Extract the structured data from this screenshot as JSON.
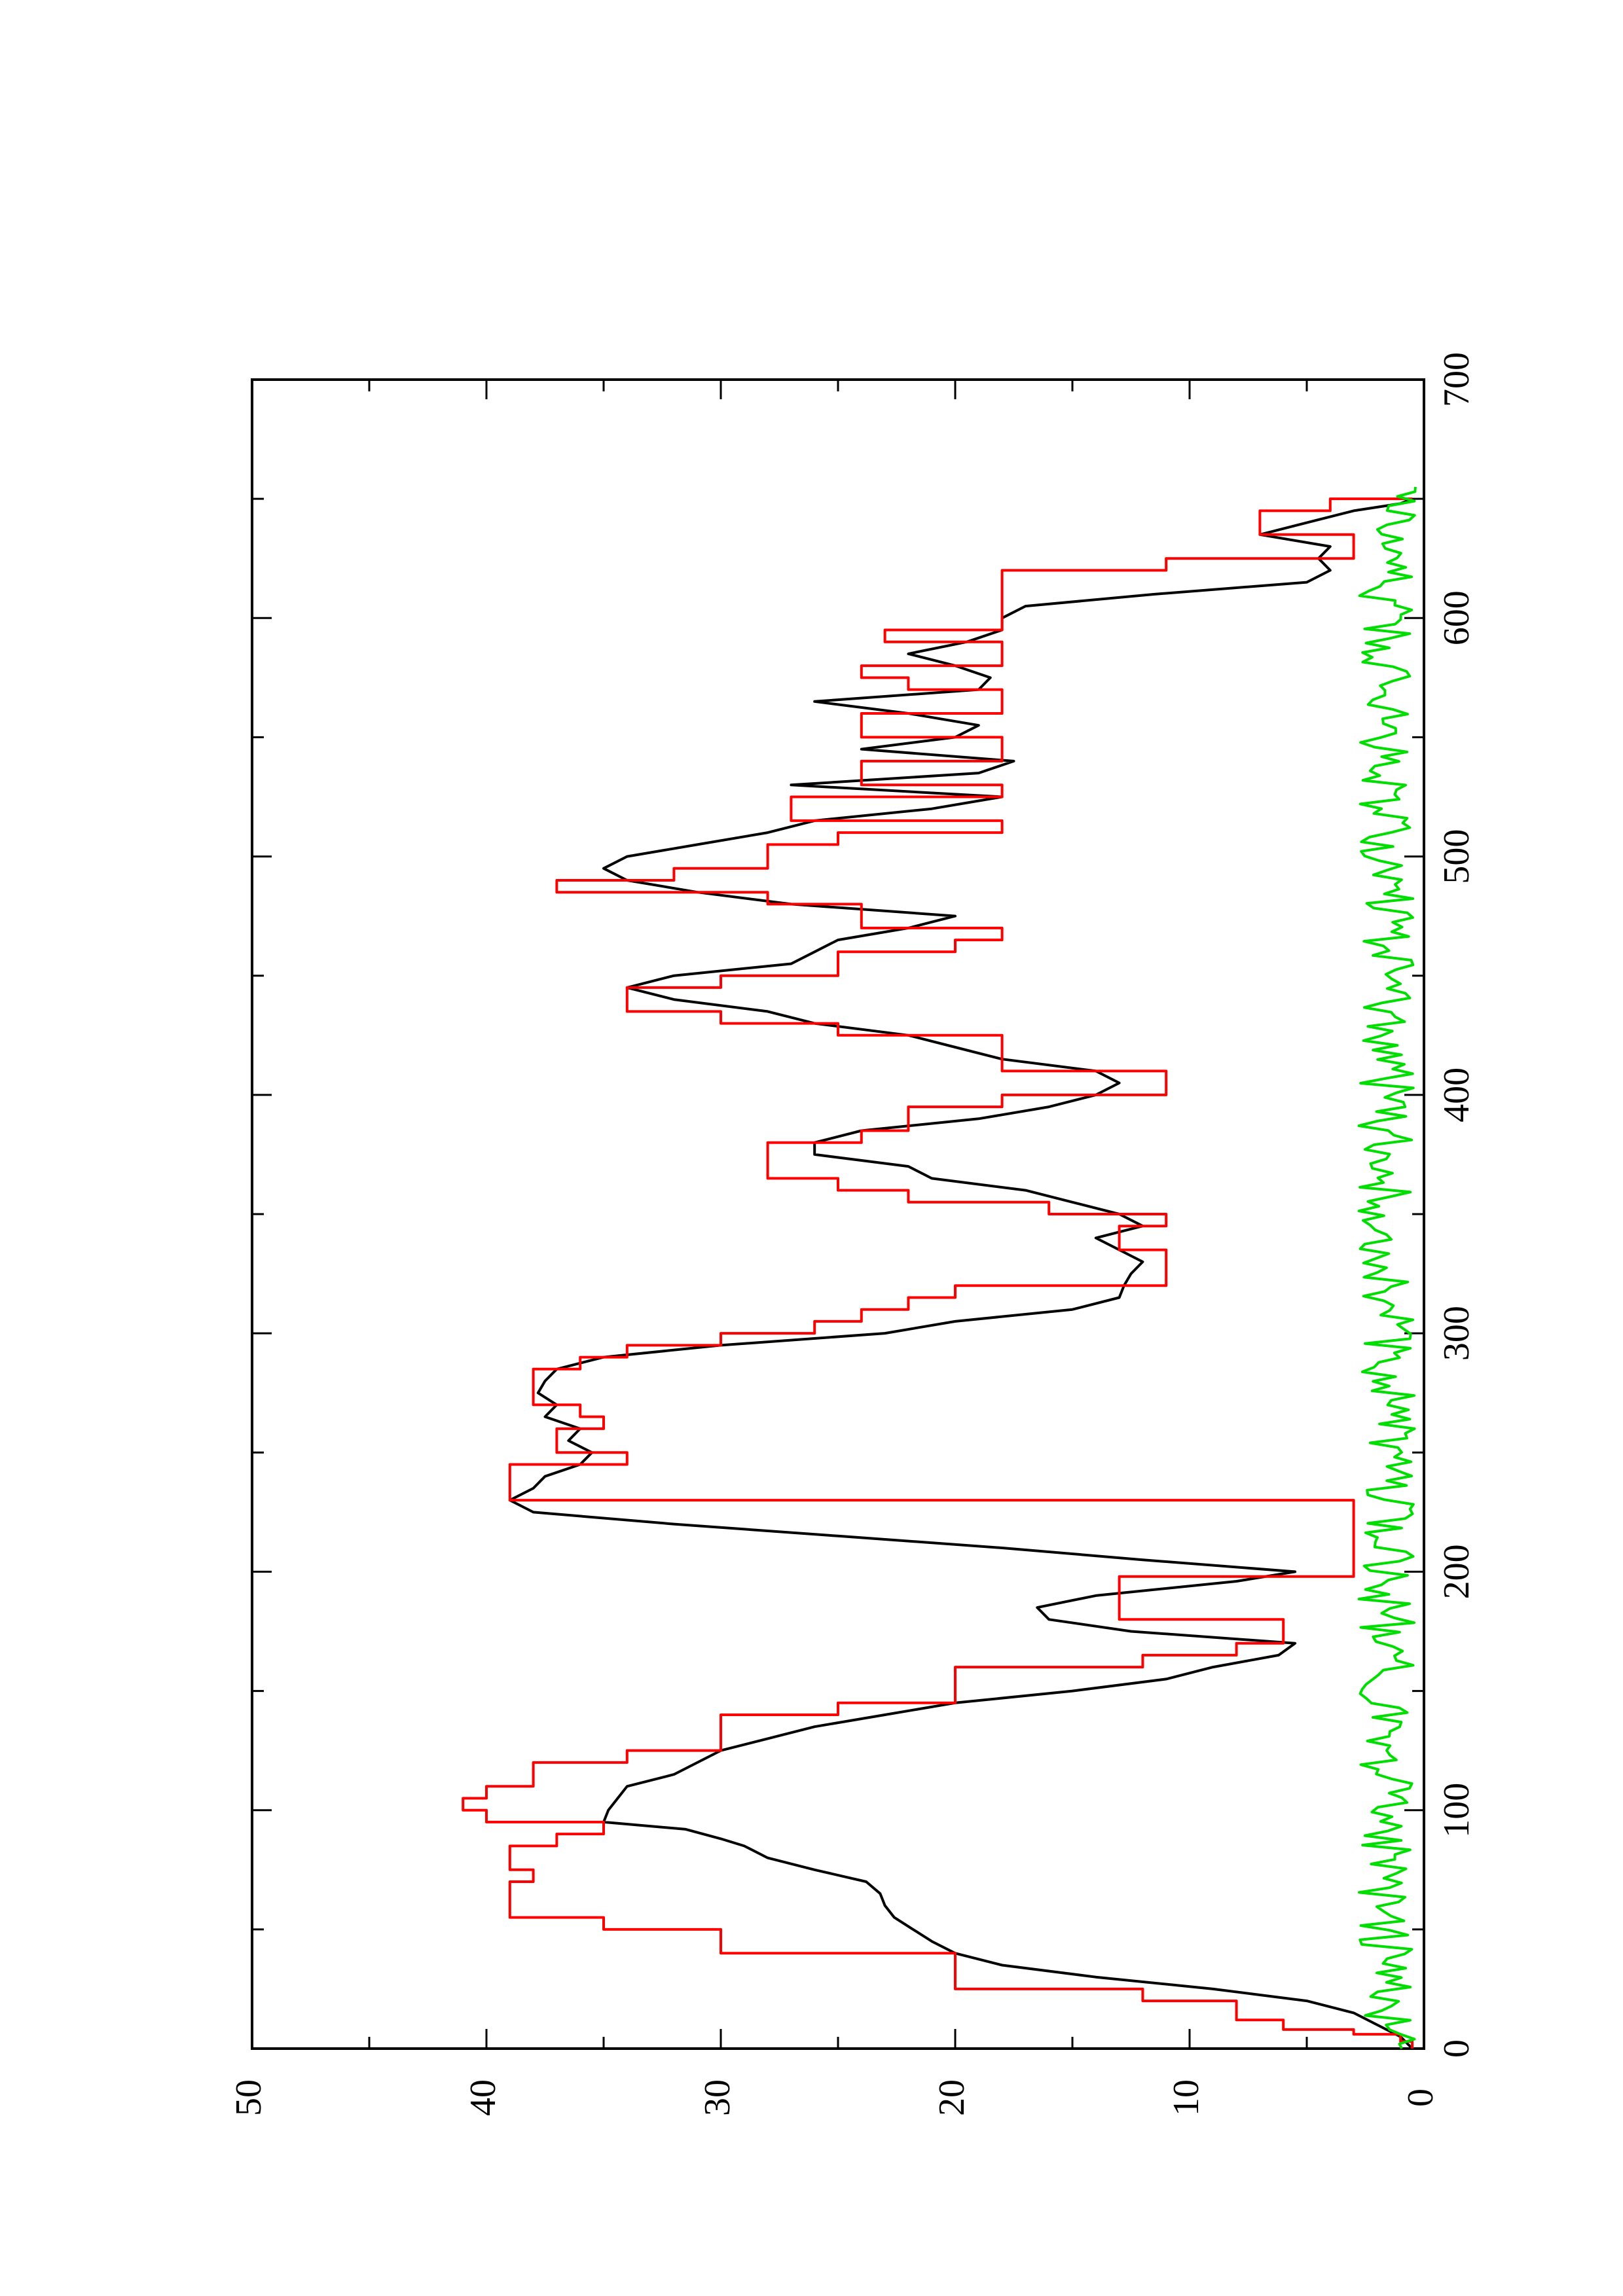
{
  "chart_data": {
    "type": "line",
    "orientation": "rotated-90-ccw",
    "title": "",
    "xlabel": "",
    "ylabel": "",
    "xlim": [
      0,
      700
    ],
    "ylim": [
      0,
      50
    ],
    "x_ticks": [
      0,
      100,
      200,
      300,
      400,
      500,
      600,
      700
    ],
    "y_ticks": [
      0,
      10,
      20,
      30,
      40,
      50
    ],
    "x_tick_labels": [
      "0",
      "100",
      "200",
      "300",
      "400",
      "500",
      "600",
      "700"
    ],
    "y_tick_labels": [
      "0",
      "10",
      "20",
      "30",
      "40",
      "50"
    ],
    "grid": false,
    "series": [
      {
        "color": "#000000",
        "step": false,
        "x": [
          0,
          5,
          10,
          15,
          20,
          25,
          30,
          35,
          40,
          45,
          50,
          55,
          60,
          65,
          70,
          75,
          80,
          85,
          88,
          92,
          95,
          100,
          105,
          110,
          115,
          120,
          125,
          130,
          135,
          140,
          145,
          150,
          155,
          160,
          165,
          170,
          175,
          180,
          185,
          190,
          196,
          200,
          205,
          210,
          215,
          220,
          225,
          230,
          235,
          240,
          245,
          250,
          255,
          260,
          265,
          270,
          275,
          280,
          285,
          290,
          295,
          300,
          305,
          310,
          315,
          320,
          325,
          330,
          335,
          340,
          345,
          350,
          355,
          360,
          365,
          370,
          375,
          380,
          385,
          390,
          395,
          400,
          405,
          410,
          415,
          420,
          425,
          430,
          435,
          440,
          445,
          450,
          455,
          460,
          465,
          470,
          475,
          480,
          485,
          490,
          495,
          500,
          505,
          510,
          515,
          520,
          525,
          530,
          535,
          540,
          545,
          550,
          555,
          560,
          565,
          570,
          575,
          580,
          585,
          590,
          595,
          600,
          605,
          610,
          615,
          620,
          625,
          630,
          635,
          640,
          645,
          648,
          650
        ],
        "y": [
          0.5,
          1,
          2,
          3,
          5,
          9,
          14,
          18,
          20,
          21,
          21.8,
          22.6,
          23,
          23.2,
          23.8,
          26,
          28,
          29,
          30,
          31.5,
          35,
          34.8,
          34.4,
          34,
          32,
          31,
          30,
          28,
          26,
          23,
          20,
          15,
          11,
          9,
          6.2,
          5.5,
          12.5,
          16,
          16.5,
          14,
          8,
          5.5,
          12,
          18,
          25,
          32,
          38,
          39,
          38,
          37.5,
          36,
          35.5,
          36.5,
          36,
          37.5,
          37,
          37.8,
          37.5,
          37,
          35,
          30,
          23,
          20,
          15,
          13,
          12.8,
          12.5,
          12,
          13,
          14,
          12,
          13,
          15,
          17,
          21,
          22,
          26,
          26,
          24,
          19,
          16,
          14,
          13,
          14,
          18,
          20,
          22,
          26,
          28,
          32,
          34,
          32,
          27,
          26,
          25,
          22,
          20,
          27,
          31,
          34,
          35,
          34,
          31,
          28,
          26,
          21,
          18,
          27,
          19,
          17.5,
          24,
          20,
          19,
          22,
          26,
          19,
          18.5,
          20,
          22,
          19.5,
          18,
          18,
          17,
          11.5,
          5,
          4,
          4.5,
          4,
          7,
          5,
          3,
          1,
          0.5
        ],
        "y_scale_note": "values in data units"
      },
      {
        "color": "#ff0000",
        "step": true,
        "x": [
          0,
          3,
          6,
          8,
          12,
          20,
          25,
          40,
          50,
          55,
          65,
          70,
          75,
          85,
          90,
          95,
          100,
          105,
          110,
          120,
          125,
          140,
          145,
          160,
          165,
          170,
          180,
          185,
          190,
          198,
          230,
          240,
          245,
          250,
          255,
          260,
          265,
          270,
          275,
          285,
          290,
          295,
          300,
          305,
          310,
          315,
          320,
          325,
          330,
          335,
          345,
          350,
          355,
          360,
          365,
          370,
          380,
          385,
          395,
          400,
          410,
          420,
          425,
          430,
          435,
          445,
          450,
          460,
          465,
          470,
          480,
          485,
          490,
          495,
          505,
          510,
          515,
          520,
          525,
          530,
          535,
          540,
          545,
          550,
          555,
          560,
          565,
          570,
          575,
          580,
          585,
          590,
          595,
          605,
          615,
          620,
          625,
          630,
          635,
          640,
          645,
          650
        ],
        "y": [
          0.5,
          1,
          3,
          6,
          8,
          12,
          20,
          30,
          35,
          39,
          39,
          38,
          39,
          37,
          35,
          40,
          41,
          40,
          38,
          34,
          30,
          25,
          20,
          12,
          8,
          6,
          13,
          13,
          13,
          3,
          39,
          39,
          34,
          37,
          37,
          35,
          36,
          38,
          38,
          36,
          34,
          30,
          26,
          24,
          22,
          20,
          11,
          11,
          11,
          13,
          11,
          16,
          22,
          25,
          28,
          28,
          24,
          22,
          18,
          11,
          18,
          18,
          25,
          30,
          34,
          30,
          25,
          20,
          18,
          24,
          28,
          37,
          32,
          28,
          25,
          18,
          27,
          27,
          18,
          24,
          24,
          18,
          18,
          24,
          24,
          18,
          18,
          22,
          24,
          18,
          18,
          23,
          18,
          18,
          18,
          11,
          3,
          3,
          7,
          7,
          4,
          0.5
        ]
      },
      {
        "color": "#00dd00",
        "step": false,
        "noisy": true,
        "x_range": [
          0,
          655
        ],
        "y_mean": 1.6,
        "y_amplitude": 1.2,
        "sample_count": 330
      }
    ]
  }
}
